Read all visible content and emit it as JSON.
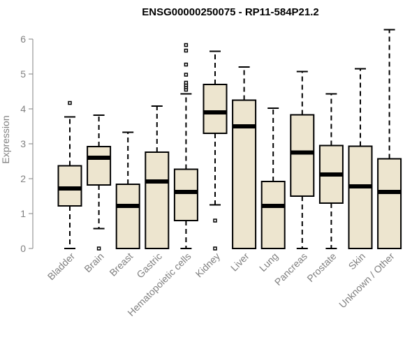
{
  "chart_data": {
    "type": "boxplot",
    "title": "ENSG00000250075 - RP11-584P21.2",
    "ylabel": "Expression",
    "xlabel": "",
    "ylim": [
      0,
      6.3
    ],
    "yticks": [
      0,
      1,
      2,
      3,
      4,
      5,
      6
    ],
    "colors": {
      "box_fill": "#ede5cf",
      "box_stroke": "#000000",
      "axis": "#808080",
      "text": "#808080"
    },
    "categories": [
      "Bladder",
      "Brain",
      "Breast",
      "Gastric",
      "Hematopoietic cells",
      "Kidney",
      "Liver",
      "Lung",
      "Pancreas",
      "Prostate",
      "Skin",
      "Unknown / Other"
    ],
    "boxes": [
      {
        "name": "Bladder",
        "whisker_low": 0,
        "q1": 1.22,
        "median": 1.72,
        "q3": 2.37,
        "whisker_high": 3.77,
        "outliers": [
          4.17
        ]
      },
      {
        "name": "Brain",
        "whisker_low": 0.57,
        "q1": 1.82,
        "median": 2.6,
        "q3": 2.92,
        "whisker_high": 3.82,
        "outliers": [
          0.0
        ]
      },
      {
        "name": "Breast",
        "whisker_low": 0,
        "q1": 0,
        "median": 1.22,
        "q3": 1.84,
        "whisker_high": 3.33,
        "outliers": []
      },
      {
        "name": "Gastric",
        "whisker_low": 0,
        "q1": 0,
        "median": 1.92,
        "q3": 2.76,
        "whisker_high": 4.08,
        "outliers": []
      },
      {
        "name": "Hematopoietic cells",
        "whisker_low": 0,
        "q1": 0.8,
        "median": 1.62,
        "q3": 2.27,
        "whisker_high": 4.43,
        "outliers": [
          4.55,
          4.62,
          4.68,
          4.75,
          4.98,
          5.27,
          5.67,
          5.83
        ]
      },
      {
        "name": "Kidney",
        "whisker_low": 1.25,
        "q1": 3.3,
        "median": 3.9,
        "q3": 4.7,
        "whisker_high": 5.65,
        "outliers": [
          0.8,
          0.0
        ]
      },
      {
        "name": "Liver",
        "whisker_low": 0,
        "q1": 0,
        "median": 3.5,
        "q3": 4.25,
        "whisker_high": 5.2,
        "outliers": []
      },
      {
        "name": "Lung",
        "whisker_low": 0,
        "q1": 0,
        "median": 1.22,
        "q3": 1.92,
        "whisker_high": 4.02,
        "outliers": []
      },
      {
        "name": "Pancreas",
        "whisker_low": 0,
        "q1": 1.5,
        "median": 2.75,
        "q3": 3.83,
        "whisker_high": 5.07,
        "outliers": []
      },
      {
        "name": "Prostate",
        "whisker_low": 0,
        "q1": 1.3,
        "median": 2.12,
        "q3": 2.95,
        "whisker_high": 4.43,
        "outliers": []
      },
      {
        "name": "Skin",
        "whisker_low": 0,
        "q1": 0,
        "median": 1.78,
        "q3": 2.93,
        "whisker_high": 5.15,
        "outliers": []
      },
      {
        "name": "Unknown / Other",
        "whisker_low": 0,
        "q1": 0,
        "median": 1.62,
        "q3": 2.57,
        "whisker_high": 6.27,
        "outliers": []
      }
    ]
  }
}
